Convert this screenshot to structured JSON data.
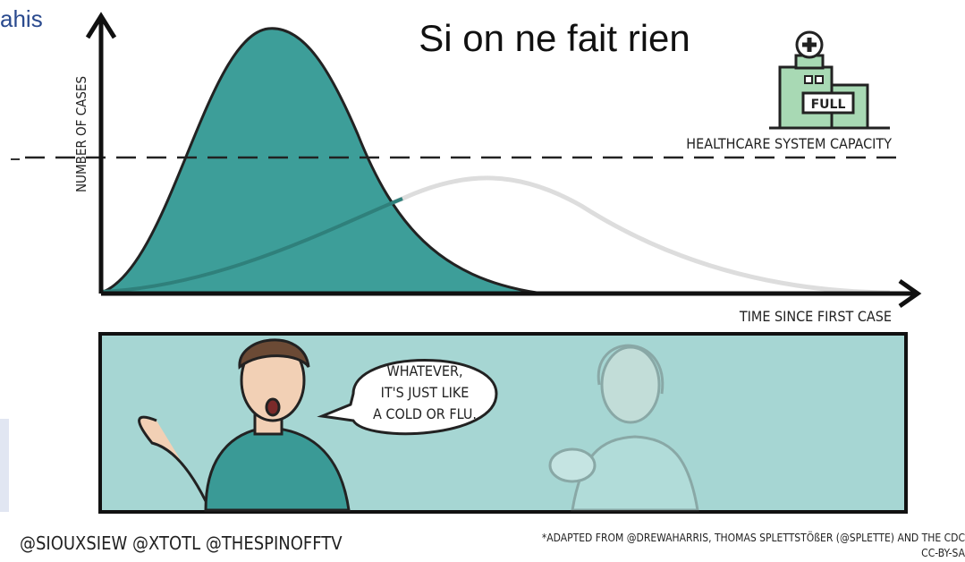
{
  "page": {
    "cropped_text": "ahis",
    "title": "Si on ne fait rien",
    "y_axis_label": "NUMBER OF CASES",
    "capacity_label": "HEALTHCARE SYSTEM CAPACITY",
    "x_axis_label": "TIME SINCE FIRST CASE",
    "hospital_sign": "FULL",
    "speech": [
      "WHATEVER,",
      "IT'S JUST LIKE",
      "A COLD OR FLU."
    ],
    "credits": "@SIOUXSIEW @XTOTL @THESPINOFFTV",
    "source": "*ADAPTED FROM @DREWAHARRIS, THOMAS SPLETTSTÖßER (@SPLETTE) AND THE CDC",
    "license": "CC-BY-SA"
  }
}
